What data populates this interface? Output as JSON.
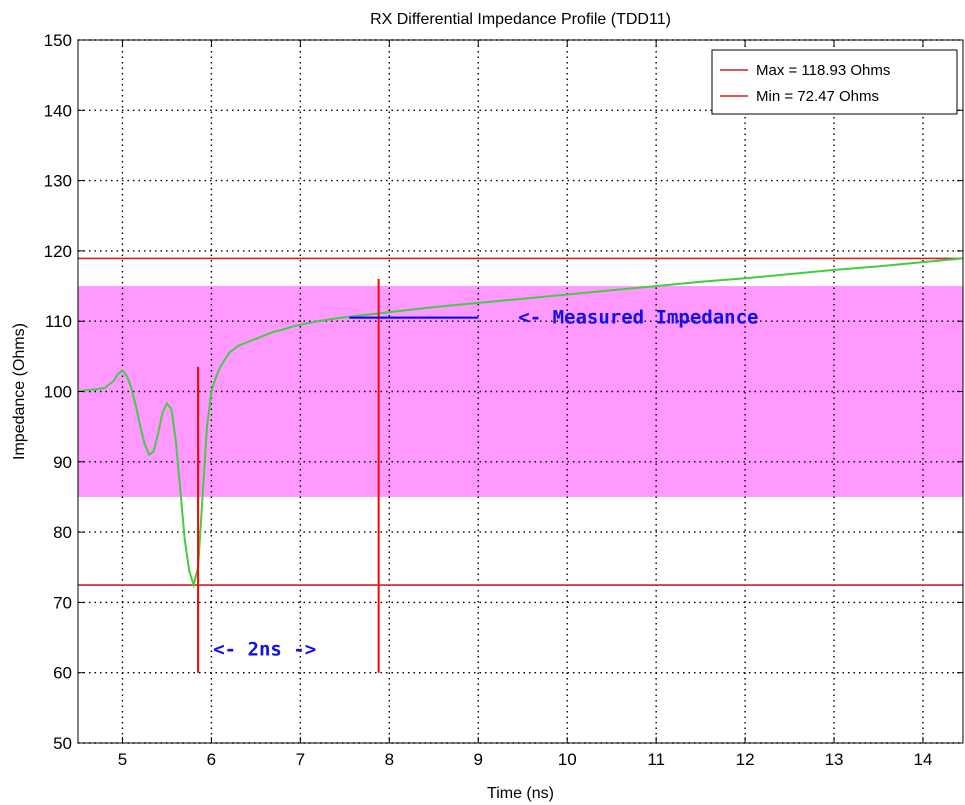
{
  "chart_data": {
    "type": "line",
    "title": "RX Differential Impedance Profile (TDD11)",
    "xlabel": "Time (ns)",
    "ylabel": "Impedance (Ohms)",
    "xlim": [
      4.5,
      14.45
    ],
    "ylim": [
      50,
      150
    ],
    "xticks": [
      5,
      6,
      7,
      8,
      9,
      10,
      11,
      12,
      13,
      14
    ],
    "yticks": [
      50,
      60,
      70,
      80,
      90,
      100,
      110,
      120,
      130,
      140,
      150
    ],
    "grid": true,
    "grid_style": "dotted",
    "tolerance_band": {
      "ymin": 85,
      "ymax": 115,
      "color": "#ff99ff"
    },
    "series": [
      {
        "color": "#44cc44",
        "x": [
          4.5,
          4.6,
          4.7,
          4.8,
          4.9,
          4.95,
          5.0,
          5.05,
          5.1,
          5.15,
          5.2,
          5.25,
          5.3,
          5.35,
          5.4,
          5.45,
          5.5,
          5.55,
          5.6,
          5.65,
          5.7,
          5.75,
          5.8,
          5.85,
          5.9,
          5.95,
          6.0,
          6.05,
          6.1,
          6.2,
          6.3,
          6.4,
          6.5,
          6.6,
          6.7,
          6.8,
          6.9,
          7.0,
          7.2,
          7.4,
          7.6,
          7.8,
          8.0,
          8.5,
          9.0,
          9.5,
          10.0,
          10.5,
          11.0,
          11.5,
          12.0,
          12.5,
          13.0,
          13.5,
          14.0,
          14.45
        ],
        "values": [
          100.0,
          100.2,
          100.3,
          100.5,
          101.5,
          102.5,
          103.0,
          102.2,
          100.5,
          98.0,
          95.0,
          92.5,
          91.0,
          91.5,
          94.0,
          97.0,
          98.3,
          97.5,
          93.0,
          86.0,
          79.0,
          74.5,
          72.5,
          75.0,
          85.0,
          95.0,
          100.0,
          102.0,
          103.5,
          105.5,
          106.5,
          107.0,
          107.5,
          108.0,
          108.5,
          108.8,
          109.2,
          109.5,
          110.0,
          110.4,
          110.7,
          111.0,
          111.3,
          112.0,
          112.6,
          113.2,
          113.8,
          114.4,
          115.0,
          115.6,
          116.1,
          116.7,
          117.3,
          117.8,
          118.4,
          118.93
        ]
      }
    ],
    "reference_lines": [
      {
        "label": "Max = 118.93 Ohms",
        "y": 118.93,
        "color": "#cc2222"
      },
      {
        "label": "Min = 72.47 Ohms",
        "y": 72.47,
        "color": "#cc2222"
      }
    ],
    "legend": {
      "position": "top-right"
    },
    "markers": [
      {
        "x": 5.85,
        "y1": 60,
        "y2": 103.5,
        "color": "#ff0000"
      },
      {
        "x": 7.88,
        "y1": 60,
        "y2": 116,
        "color": "#ff0000"
      },
      {
        "x1": 7.55,
        "x2": 9.0,
        "y": 110.5,
        "color": "#0000ff"
      }
    ],
    "annotations": [
      {
        "text": "<- Measured Impedance",
        "x": 9.45,
        "y": 110.5
      },
      {
        "text": "<- 2ns ->",
        "x": 6.02,
        "y": 63.3
      }
    ]
  }
}
